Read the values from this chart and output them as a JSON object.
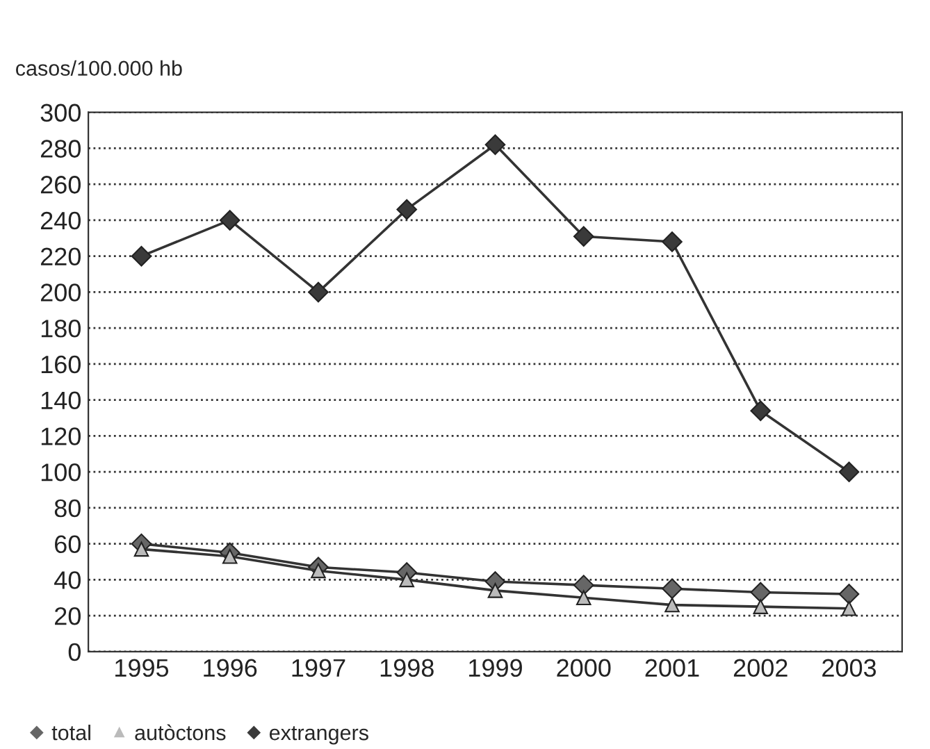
{
  "chart_data": {
    "type": "line",
    "ylabel": "casos/100.000 hb",
    "categories": [
      "1995",
      "1996",
      "1997",
      "1998",
      "1999",
      "2000",
      "2001",
      "2002",
      "2003"
    ],
    "series": [
      {
        "name": "total",
        "color": "#666666",
        "marker": "diamond",
        "values": [
          60,
          55,
          47,
          44,
          39,
          37,
          35,
          33,
          32
        ]
      },
      {
        "name": "autòctons",
        "color": "#bbbbbb",
        "marker": "triangle",
        "values": [
          57,
          53,
          45,
          40,
          34,
          30,
          26,
          25,
          24
        ]
      },
      {
        "name": "extrangers",
        "color": "#3a3a3a",
        "marker": "diamond",
        "values": [
          220,
          240,
          200,
          246,
          282,
          231,
          228,
          134,
          100
        ]
      }
    ],
    "ylim": [
      0,
      300
    ],
    "yticks": [
      0,
      20,
      40,
      60,
      80,
      100,
      120,
      140,
      160,
      180,
      200,
      220,
      240,
      260,
      280,
      300
    ],
    "grid": "y",
    "legend": "bottom",
    "line_style": "solid"
  }
}
